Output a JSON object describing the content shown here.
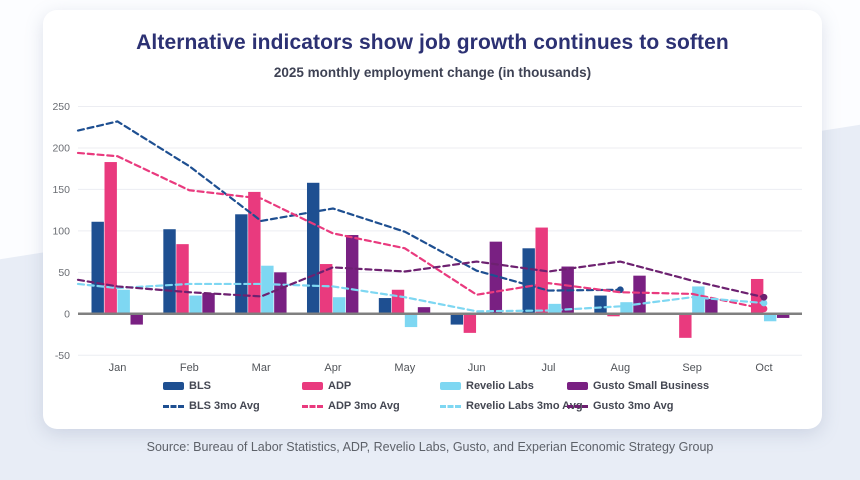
{
  "header": {
    "title": "Alternative indicators show job growth continues to soften",
    "subtitle": "2025 monthly employment change (in thousands)"
  },
  "footer": {
    "source": "Source: Bureau of Labor Statistics, ADP, Revelio Labs, Gusto, and Experian Economic Strategy Group"
  },
  "colors": {
    "bls": "#1E4F91",
    "adp": "#E93A7E",
    "revelio": "#7ED7F2",
    "gusto": "#792082",
    "gusto_line": "#6D2170",
    "title": "#2C3173",
    "grid": "#ECEDF2",
    "zero_axis": "#808080",
    "tick_text": "#6A6D73",
    "month_text": "#515459",
    "background_band": "#E8EDF6"
  },
  "chart_data": {
    "type": "bar",
    "note": "grouped monthly bars with dashed 3-month-average trend lines; trend lines enter from left plot edge and end with a dot marker",
    "title": "Alternative indicators show job growth continues to soften",
    "subtitle": "2025 monthly employment change (in thousands)",
    "categories": [
      "Jan",
      "Feb",
      "Mar",
      "Apr",
      "May",
      "Jun",
      "Jul",
      "Aug",
      "Sep",
      "Oct"
    ],
    "y_axis": {
      "ticks": [
        250,
        200,
        150,
        100,
        50,
        0,
        -50
      ],
      "range": [
        -50,
        250
      ],
      "gridlines": true
    },
    "bar_series": [
      {
        "name": "BLS",
        "color": "#1E4F91",
        "values": [
          111,
          102,
          120,
          158,
          19,
          -13,
          79,
          22,
          null,
          null
        ]
      },
      {
        "name": "ADP",
        "color": "#E93A7E",
        "values": [
          183,
          84,
          147,
          60,
          29,
          -23,
          104,
          -3,
          -29,
          42
        ]
      },
      {
        "name": "Revelio Labs",
        "color": "#7ED7F2",
        "values": [
          29,
          22,
          58,
          20,
          -16,
          2,
          12,
          14,
          33,
          -9
        ]
      },
      {
        "name": "Gusto Small Business",
        "color": "#792082",
        "values": [
          -13,
          25,
          50,
          95,
          8,
          87,
          57,
          46,
          18,
          -5
        ]
      }
    ],
    "line_series": [
      {
        "name": "BLS 3mo Avg",
        "color": "#1E4F91",
        "lead_in": 221,
        "values": [
          232,
          178,
          112,
          127,
          99,
          52,
          28,
          29,
          null,
          null
        ]
      },
      {
        "name": "ADP 3mo Avg",
        "color": "#E93A7E",
        "lead_in": 194,
        "values": [
          190,
          149,
          139,
          97,
          79,
          23,
          37,
          26,
          24,
          6
        ]
      },
      {
        "name": "Revelio Labs 3mo Avg",
        "color": "#7ED7F2",
        "lead_in": 36,
        "values": [
          31,
          36,
          36,
          33,
          20,
          3,
          4,
          9,
          20,
          13
        ]
      },
      {
        "name": "Gusto 3mo Avg",
        "color": "#6D2170",
        "lead_in": 41,
        "values": [
          33,
          26,
          21,
          56,
          51,
          63,
          51,
          63,
          40,
          20
        ]
      }
    ],
    "legend": {
      "row1": [
        {
          "label": "BLS",
          "style": "solid",
          "color": "#1E4F91"
        },
        {
          "label": "ADP",
          "style": "solid",
          "color": "#E93A7E"
        },
        {
          "label": "Revelio Labs",
          "style": "solid",
          "color": "#7ED7F2"
        },
        {
          "label": "Gusto Small Business",
          "style": "solid",
          "color": "#792082"
        }
      ],
      "row2": [
        {
          "label": "BLS 3mo Avg",
          "style": "dashed",
          "color": "#1E4F91"
        },
        {
          "label": "ADP 3mo Avg",
          "style": "dashed",
          "color": "#E93A7E"
        },
        {
          "label": "Revelio Labs 3mo Avg",
          "style": "dashed",
          "color": "#7ED7F2"
        },
        {
          "label": "Gusto 3mo Avg",
          "style": "dashed",
          "color": "#6D2170"
        }
      ]
    },
    "legend_position": "bottom"
  }
}
